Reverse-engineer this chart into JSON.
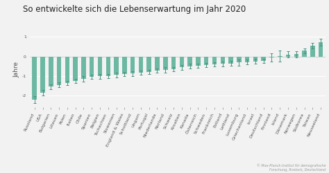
{
  "title": "So entwickelte sich die Lebenserwartung im Jahr 2020",
  "ylabel": "Jahre",
  "background_color": "#f2f2f2",
  "plot_background": "#f2f2f2",
  "bar_color": "#6db8a2",
  "error_color": "#4a9080",
  "watermark": "© Max-Planck-Institut für demografische\nForschung, Rostock, Deutschland",
  "categories": [
    "Russland",
    "USA",
    "Bulgarien",
    "Litauen",
    "Polen",
    "Italien",
    "Chile",
    "Spanien",
    "Belgien",
    "Tschechien",
    "Slowenien",
    "England & Wales",
    "Schottland",
    "Ungarn",
    "Portugal",
    "Niederlande",
    "Norland",
    "Schweiz",
    "Kroatien",
    "Kanada",
    "Österreich",
    "Schweden",
    "Frankreich",
    "Estland",
    "Lettland",
    "Luxemburg",
    "Griechenland",
    "Israel",
    "Deutschland",
    "Finnland",
    "Island",
    "Dänemark",
    "Norwegen",
    "Südkorea",
    "Taiwan",
    "Neuseeland"
  ],
  "values": [
    -2.22,
    -1.87,
    -1.55,
    -1.45,
    -1.35,
    -1.25,
    -1.15,
    -1.05,
    -1.02,
    -1.0,
    -0.95,
    -0.9,
    -0.88,
    -0.82,
    -0.78,
    -0.72,
    -0.68,
    -0.65,
    -0.55,
    -0.5,
    -0.48,
    -0.45,
    -0.4,
    -0.38,
    -0.35,
    -0.3,
    -0.28,
    -0.25,
    -0.22,
    -0.05,
    0.02,
    0.1,
    0.12,
    0.3,
    0.55,
    0.72
  ],
  "errors": [
    0.18,
    0.14,
    0.13,
    0.13,
    0.11,
    0.11,
    0.13,
    0.11,
    0.11,
    0.11,
    0.11,
    0.11,
    0.13,
    0.11,
    0.11,
    0.11,
    0.13,
    0.11,
    0.13,
    0.13,
    0.11,
    0.11,
    0.11,
    0.13,
    0.13,
    0.16,
    0.13,
    0.13,
    0.11,
    0.22,
    0.28,
    0.16,
    0.16,
    0.13,
    0.13,
    0.18
  ],
  "ylim": [
    -2.6,
    1.3
  ],
  "yticks": [
    -2,
    -1,
    0,
    1
  ],
  "title_fontsize": 8.5,
  "axis_fontsize": 6.5,
  "tick_fontsize": 4.5,
  "watermark_fontsize": 3.5
}
